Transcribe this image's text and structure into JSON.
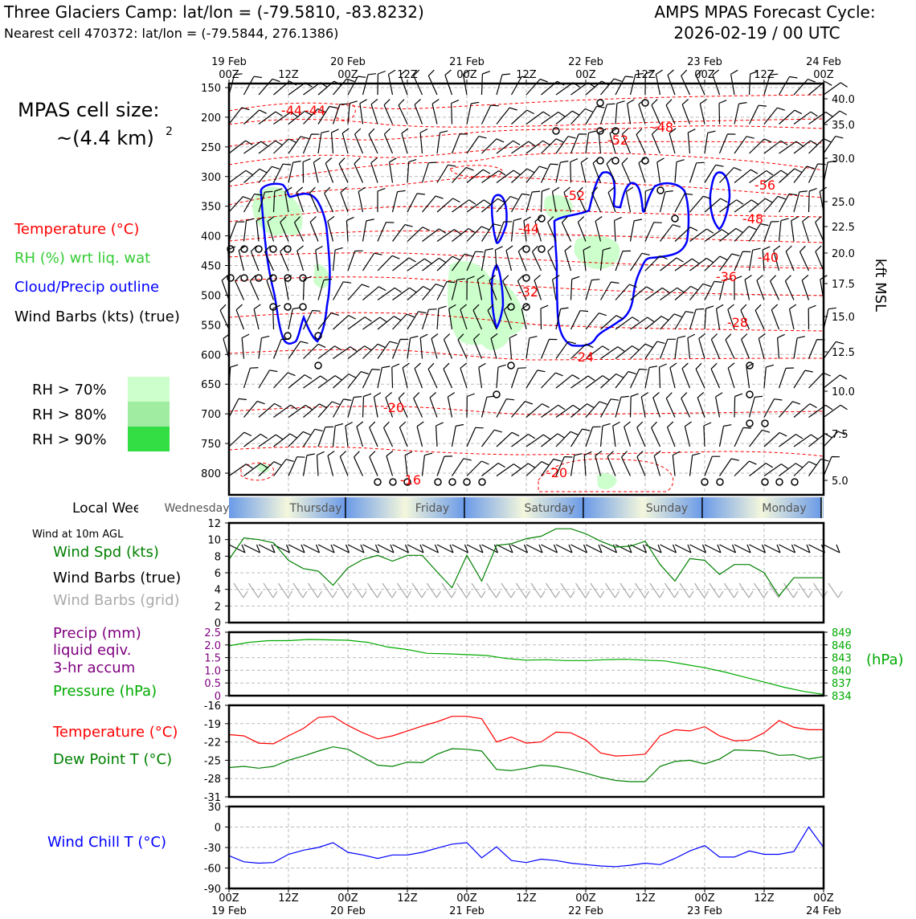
{
  "header": {
    "location_title": "Three Glaciers Camp: lat/lon = (-79.5810, -83.8232)",
    "nearest_cell": "Nearest cell 470372: lat/lon = (-79.5844, 276.1386)",
    "cycle_line1": "AMPS MPAS Forecast Cycle:",
    "cycle_line2": "2026-02-19 / 00 UTC"
  },
  "side": {
    "cell_size_label": "MPAS cell size:",
    "cell_size_value": "~(4.4 km)",
    "cell_size_exp": "2",
    "legend_temperature": "Temperature (°C)",
    "legend_rh": "RH (%) wrt liq. wat",
    "legend_cloud": "Cloud/Precip outline",
    "legend_wind": "Wind Barbs (kts) (true)",
    "rh70": "RH > 70%",
    "rh80": "RH > 80%",
    "rh90": "RH > 90%",
    "local_weekday": "Local Weekday",
    "wind_10m": "Wind at 10m AGL",
    "wind_spd_label": "Wind Spd (kts)",
    "wind_barbs_true": "Wind Barbs (true)",
    "wind_barbs_grid": "Wind Barbs (grid)",
    "precip_l1": "Precip (mm)",
    "precip_l2": "liquid eqiv.",
    "precip_l3": "3-hr accum",
    "pressure_label": "Pressure (hPa)",
    "hpa_label": "(hPa)",
    "temp_label": "Temperature (°C)",
    "dew_label": "Dew Point T (°C)",
    "windchill_label": "Wind Chill T (°C)",
    "kft_label": "kft MSL"
  },
  "colors": {
    "temp": "#ff0000",
    "rh": "#33cc33",
    "cloud": "#0000ff",
    "wind": "#000000",
    "wind_grid": "#aaaaaa",
    "precip": "#800080",
    "pressure": "#00aa00",
    "dew": "#008000",
    "windchill": "#0000ff",
    "rh70_fill": "#ccffcc",
    "rh80_fill": "#a0eca0",
    "rh90_fill": "#33dd44"
  },
  "chart_data": [
    {
      "type": "time-height cross-section",
      "name": "upper",
      "x_major_top": [
        "19 Feb",
        "20 Feb",
        "21 Feb",
        "22 Feb",
        "23 Feb",
        "24 Feb"
      ],
      "x_hour_labels": [
        "00Z",
        "12Z",
        "00Z",
        "12Z",
        "00Z",
        "12Z",
        "00Z",
        "12Z",
        "00Z",
        "12Z",
        "00Z"
      ],
      "y_pressure_ticks": [
        "150",
        "200",
        "250",
        "300",
        "350",
        "400",
        "450",
        "500",
        "550",
        "600",
        "650",
        "700",
        "750",
        "800"
      ],
      "y_kft_ticks": [
        "40.0",
        "35.0",
        "30.0",
        "25.0",
        "22.5",
        "20.0",
        "17.5",
        "15.0",
        "12.5",
        "10.0",
        "7.5",
        "5.0"
      ],
      "temp_contour_labels": [
        "-44",
        "-44",
        "-48",
        "-52",
        "-52",
        "-56",
        "-48",
        "-44",
        "-40",
        "-36",
        "-32",
        "-28",
        "-24",
        "-20",
        "-16",
        "-20"
      ]
    },
    {
      "type": "weekday-band",
      "name": "weekday",
      "days": [
        "Wednesday",
        "Thursday",
        "Friday",
        "Saturday",
        "Sunday",
        "Monday"
      ]
    },
    {
      "type": "line",
      "name": "wind_speed",
      "ylim": [
        0,
        12
      ],
      "y_ticks": [
        "0",
        "2",
        "4",
        "6",
        "8",
        "10",
        "12"
      ],
      "x_hours": [
        0,
        3,
        6,
        9,
        12,
        15,
        18,
        21,
        24,
        27,
        30,
        33,
        36,
        39,
        42,
        45,
        48,
        51,
        54,
        57,
        60,
        63,
        66,
        69,
        72,
        75,
        78,
        81,
        84,
        87,
        90,
        93,
        96,
        99,
        102,
        105,
        108,
        111,
        114,
        117,
        120
      ],
      "values": [
        7.6,
        10.2,
        10.0,
        9.6,
        7.5,
        6.5,
        6.2,
        4.5,
        6.6,
        7.6,
        8.1,
        7.4,
        8.1,
        8.1,
        6.1,
        4.2,
        8.1,
        5.0,
        9.3,
        9.5,
        10.1,
        10.4,
        11.3,
        11.3,
        10.7,
        9.8,
        9.1,
        9.2,
        9.8,
        7.0,
        5.0,
        7.7,
        7.5,
        5.8,
        7.0,
        7.0,
        6.0,
        3.2,
        5.4,
        5.4,
        5.4
      ]
    },
    {
      "type": "line",
      "name": "pressure",
      "ylim": [
        834,
        849
      ],
      "y_ticks_left": [
        "0",
        "0.5",
        "1.0",
        "1.5",
        "2.0",
        "2.5"
      ],
      "y_ticks_right": [
        "834",
        "837",
        "840",
        "843",
        "846",
        "849"
      ],
      "x_hours": [
        0,
        4,
        8,
        12,
        16,
        20,
        24,
        28,
        32,
        36,
        40,
        44,
        48,
        52,
        56,
        60,
        64,
        68,
        72,
        76,
        80,
        84,
        88,
        92,
        96,
        100,
        104,
        108,
        112,
        116,
        120
      ],
      "values": [
        845.8,
        846.6,
        847.0,
        847.0,
        847.3,
        847.2,
        847.1,
        846.6,
        845.5,
        844.9,
        844.0,
        843.9,
        843.7,
        843.5,
        842.8,
        842.4,
        842.5,
        842.3,
        842.3,
        842.5,
        842.6,
        842.4,
        842.2,
        841.4,
        840.6,
        839.6,
        838.4,
        837.2,
        836.0,
        835.0,
        834.3
      ]
    },
    {
      "type": "line",
      "name": "temperature_dewpoint",
      "ylim": [
        -31,
        -16
      ],
      "y_ticks": [
        "-16",
        "-19",
        "-22",
        "-25",
        "-28",
        "-31"
      ],
      "x_hours": [
        0,
        3,
        6,
        9,
        12,
        15,
        18,
        21,
        24,
        27,
        30,
        33,
        36,
        39,
        42,
        45,
        48,
        51,
        54,
        57,
        60,
        63,
        66,
        69,
        72,
        75,
        78,
        81,
        84,
        87,
        90,
        93,
        96,
        99,
        102,
        105,
        108,
        111,
        114,
        117,
        120
      ],
      "series": [
        {
          "name": "Temperature",
          "color": "#ff0000",
          "values": [
            -20.8,
            -21.0,
            -22.2,
            -22.3,
            -21.0,
            -19.8,
            -18.0,
            -17.8,
            -19.3,
            -20.5,
            -21.5,
            -21.0,
            -20.2,
            -19.4,
            -18.7,
            -17.8,
            -17.8,
            -18.2,
            -22.0,
            -21.2,
            -22.2,
            -22.0,
            -20.4,
            -20.5,
            -21.7,
            -23.8,
            -24.3,
            -24.2,
            -24.0,
            -21.0,
            -20.0,
            -20.2,
            -19.5,
            -21.0,
            -21.8,
            -21.7,
            -20.5,
            -18.5,
            -19.6,
            -20.0,
            -20.0
          ]
        },
        {
          "name": "Dew Point",
          "color": "#008000",
          "values": [
            -26.2,
            -26.0,
            -26.3,
            -26.0,
            -25.0,
            -24.3,
            -23.5,
            -22.8,
            -23.2,
            -24.5,
            -25.8,
            -26.0,
            -25.3,
            -25.4,
            -24.0,
            -23.1,
            -23.2,
            -23.5,
            -26.5,
            -26.7,
            -26.3,
            -25.8,
            -26.0,
            -26.5,
            -27.1,
            -27.8,
            -28.3,
            -28.5,
            -28.5,
            -26.0,
            -25.2,
            -25.0,
            -25.6,
            -24.8,
            -23.3,
            -23.4,
            -23.5,
            -24.2,
            -24.1,
            -24.8,
            -24.4
          ]
        }
      ]
    },
    {
      "type": "line",
      "name": "wind_chill",
      "ylim": [
        -90,
        30
      ],
      "y_ticks": [
        "30",
        "0",
        "-30",
        "-60",
        "-90"
      ],
      "x_hours": [
        0,
        3,
        6,
        9,
        12,
        15,
        18,
        21,
        24,
        27,
        30,
        33,
        36,
        39,
        42,
        45,
        48,
        51,
        54,
        57,
        60,
        63,
        66,
        69,
        72,
        75,
        78,
        81,
        84,
        87,
        90,
        93,
        96,
        99,
        102,
        105,
        108,
        111,
        114,
        117,
        120
      ],
      "values": [
        -42,
        -51,
        -53,
        -52,
        -40,
        -34,
        -30,
        -23,
        -37,
        -41,
        -46,
        -41,
        -41,
        -37,
        -31,
        -25,
        -23,
        -45,
        -29,
        -49,
        -52,
        -47,
        -49,
        -53,
        -55,
        -57,
        -58,
        -56,
        -53,
        -55,
        -46,
        -35,
        -27,
        -44,
        -44,
        -35,
        -40,
        -40,
        -36,
        0,
        -30
      ]
    }
  ],
  "x_axis_bottom": {
    "hours": [
      "00Z",
      "12Z",
      "00Z",
      "12Z",
      "00Z",
      "12Z",
      "00Z",
      "12Z",
      "00Z",
      "12Z",
      "00Z"
    ],
    "dates": [
      "19 Feb",
      "20 Feb",
      "21 Feb",
      "22 Feb",
      "23 Feb",
      "24 Feb"
    ]
  }
}
